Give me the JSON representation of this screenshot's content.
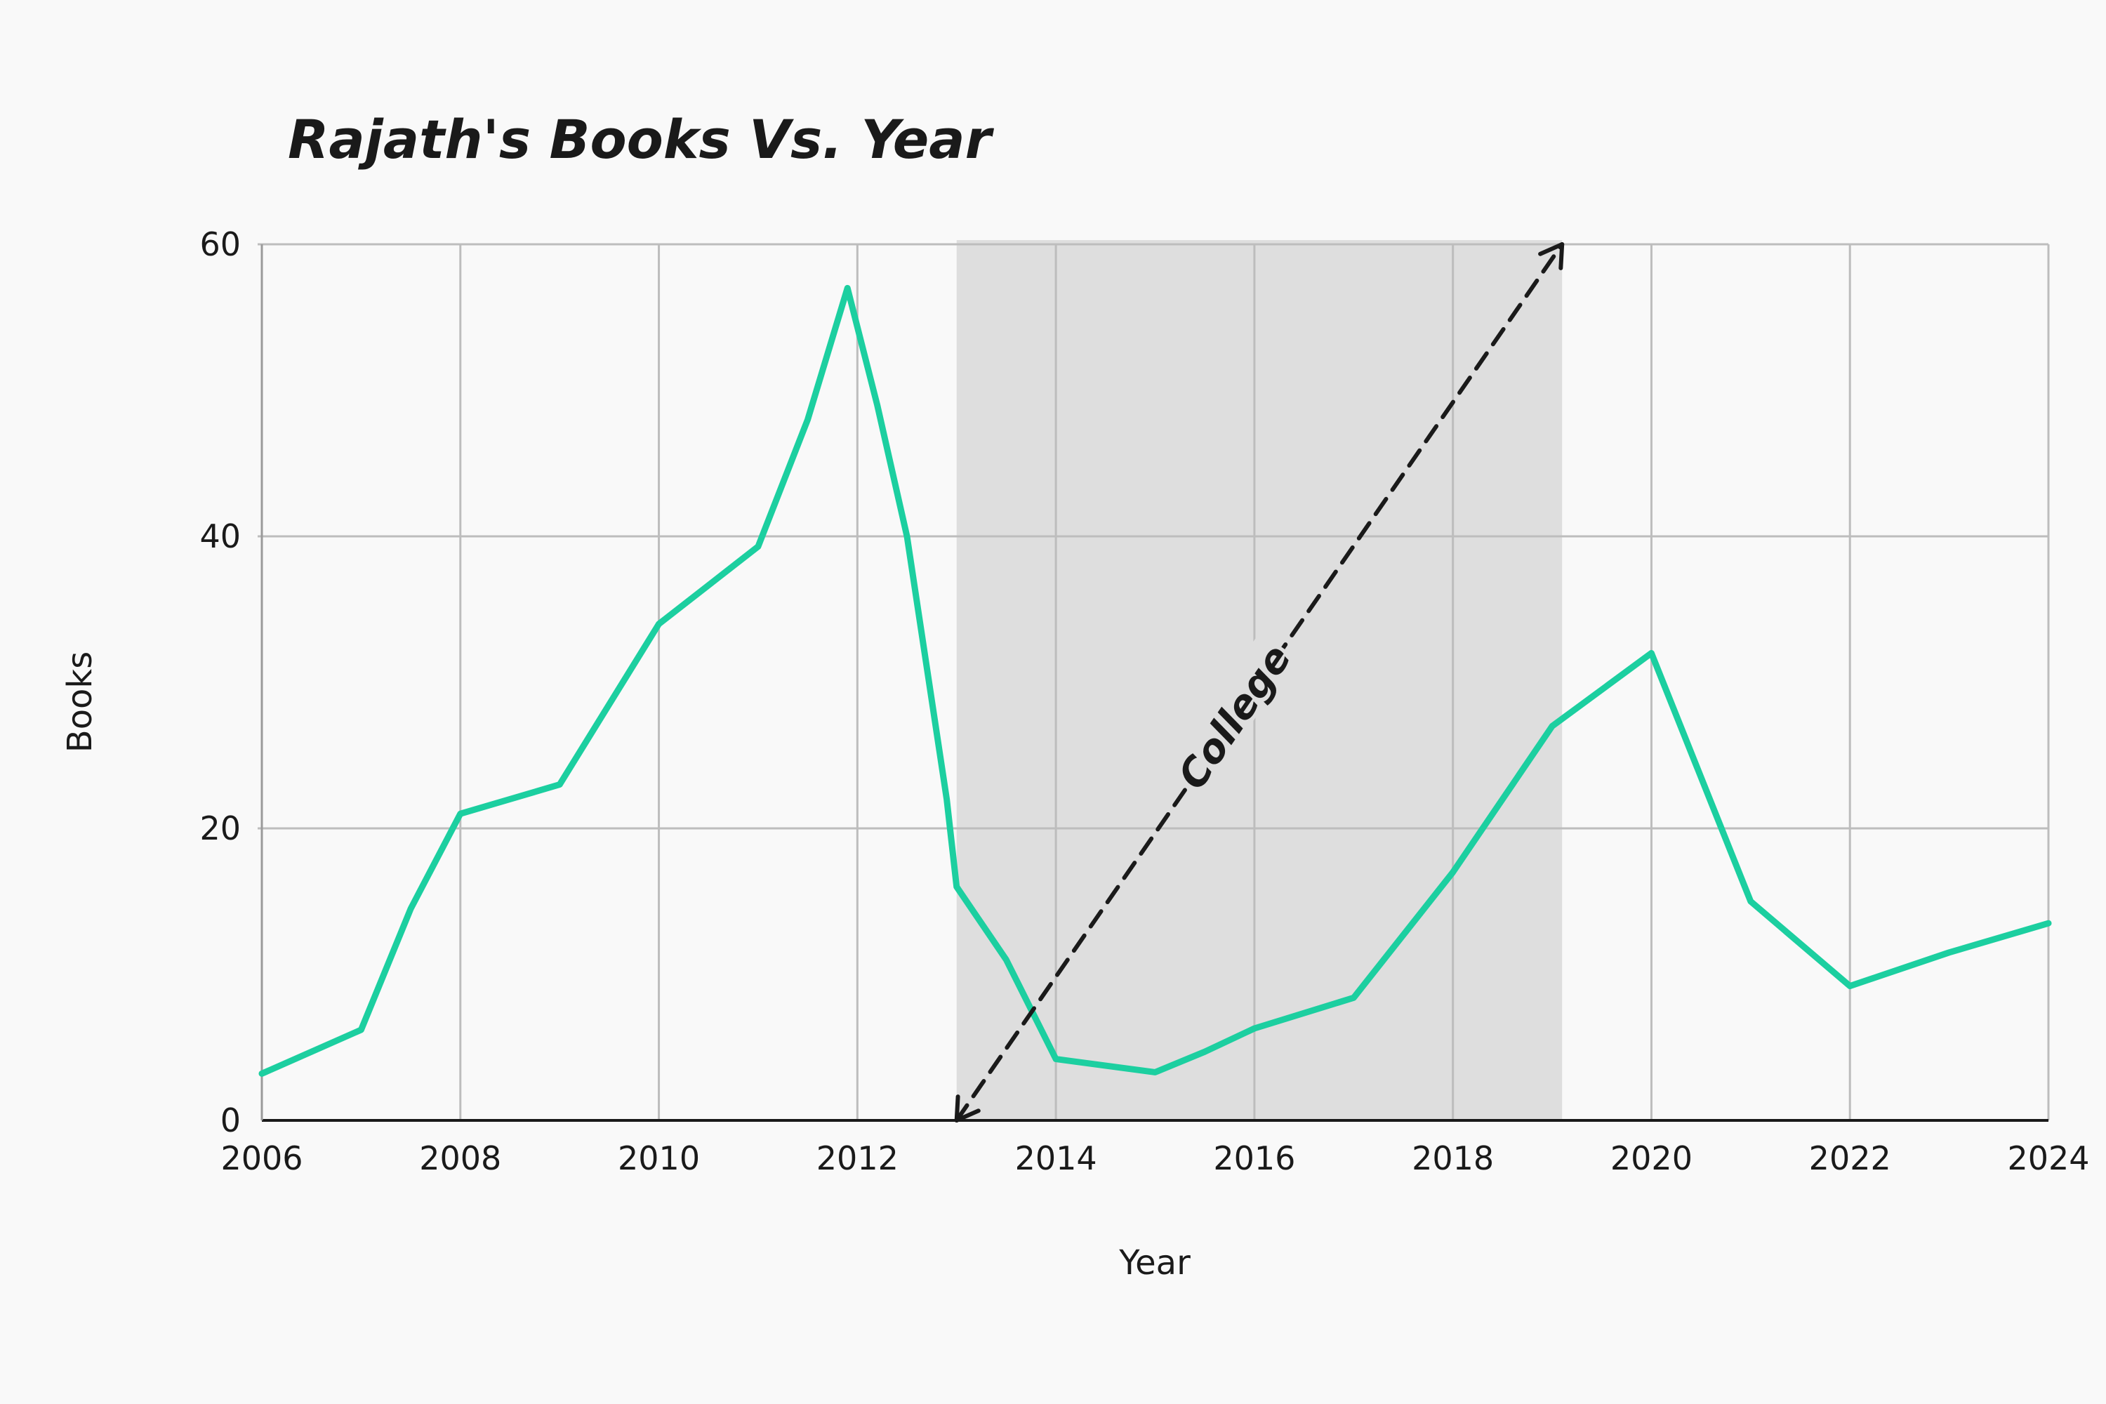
{
  "chart_data": {
    "type": "line",
    "title": "Rajath's Books Vs. Year",
    "xlabel": "Year",
    "ylabel": "Books",
    "xlim": [
      2006,
      2024
    ],
    "ylim": [
      0,
      60
    ],
    "x_ticks": [
      2006,
      2008,
      2010,
      2012,
      2014,
      2016,
      2018,
      2020,
      2022,
      2024
    ],
    "y_ticks": [
      0,
      20,
      40,
      60
    ],
    "grid": true,
    "series": [
      {
        "color": "#1ccfa0",
        "x": [
          2006,
          2007,
          2007.5,
          2008,
          2009,
          2010,
          2011,
          2011.5,
          2011.9,
          2012.2,
          2012.5,
          2012.9,
          2013,
          2013.5,
          2014,
          2015,
          2015.5,
          2016,
          2017,
          2018,
          2019,
          2020,
          2021,
          2022,
          2023,
          2024
        ],
        "y": [
          3.2,
          6.2,
          14.5,
          21,
          23,
          34,
          39.3,
          48,
          57,
          49,
          40,
          22,
          16,
          11,
          4.2,
          3.3,
          4.7,
          6.3,
          8.4,
          17,
          27,
          32,
          15,
          9.2,
          11.5,
          13.5
        ]
      }
    ],
    "shaded_region": {
      "x": [
        2013,
        2019.1
      ],
      "color": "#dedede"
    },
    "annotations": [
      {
        "text": "College",
        "x_start": 2013,
        "y_start": 0,
        "x_end": 2019.1,
        "y_end": 60,
        "style": "dashed double-arrow"
      }
    ]
  }
}
